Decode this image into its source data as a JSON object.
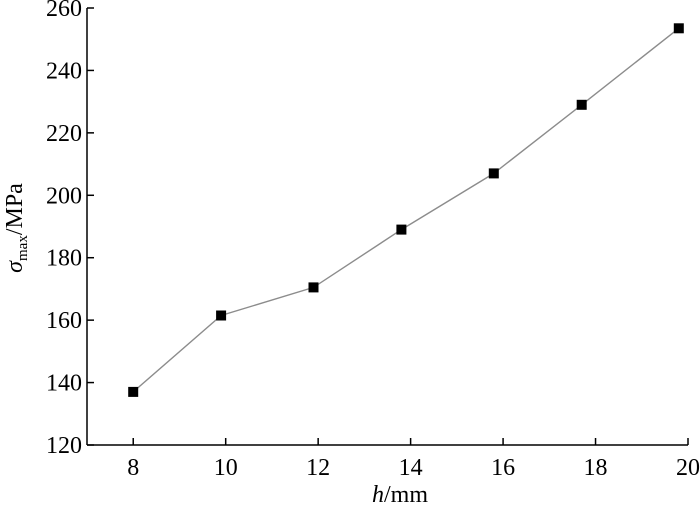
{
  "chart_data": {
    "type": "line",
    "title": "",
    "xlabel": {
      "symbol": "h",
      "unit": "/mm"
    },
    "ylabel": {
      "symbol": "σ",
      "subscript": "max",
      "unit": "/MPa"
    },
    "xlim": [
      7,
      20
    ],
    "ylim": [
      120,
      260
    ],
    "xticks": [
      8,
      10,
      12,
      14,
      16,
      18,
      20
    ],
    "yticks": [
      120,
      140,
      160,
      180,
      200,
      220,
      240,
      260
    ],
    "grid": false,
    "legend": "none",
    "series": [
      {
        "marker": "square",
        "color": "#000000",
        "line_color": "#8c8c8c",
        "x": [
          8.0,
          9.9,
          11.9,
          13.8,
          15.8,
          17.7,
          19.8
        ],
        "y": [
          137,
          161.5,
          170.5,
          189,
          207,
          229,
          253.5
        ]
      }
    ]
  }
}
